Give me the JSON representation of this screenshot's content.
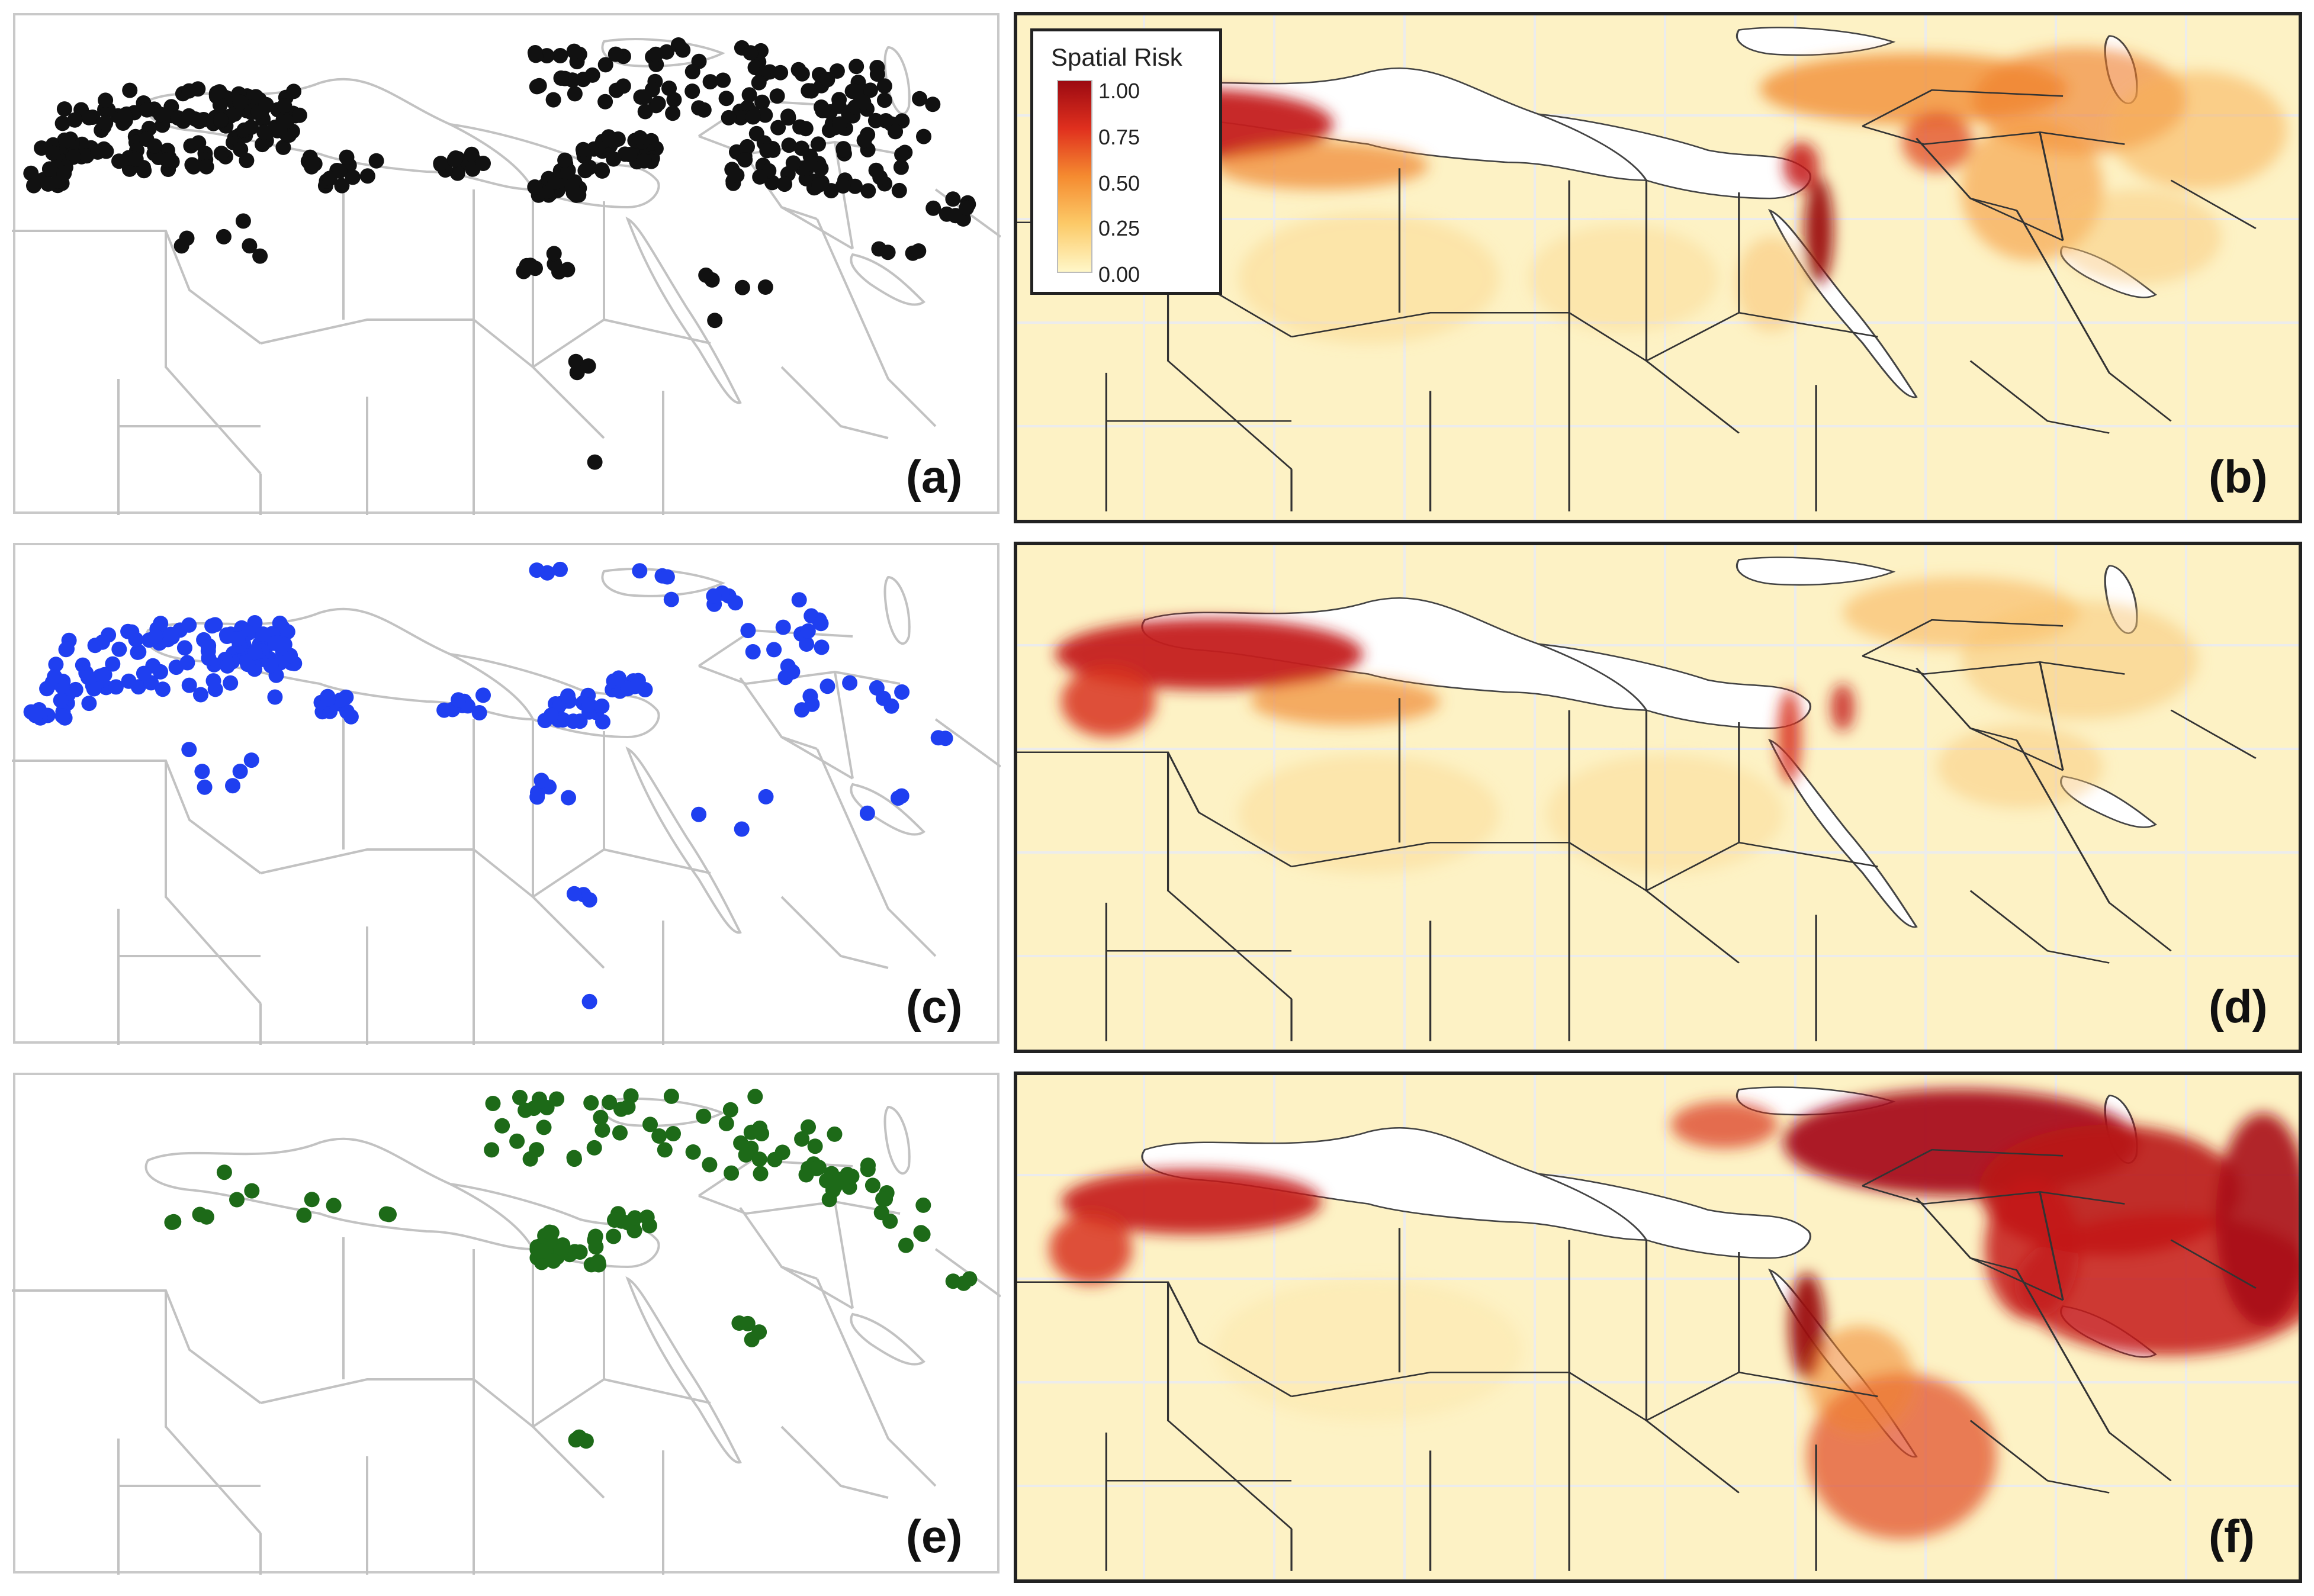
{
  "figure": {
    "panels": [
      {
        "id": "a",
        "label": "(a)",
        "kind": "points",
        "color": "#111111"
      },
      {
        "id": "b",
        "label": "(b)",
        "kind": "risk"
      },
      {
        "id": "c",
        "label": "(c)",
        "kind": "points",
        "color": "#1f3ff0"
      },
      {
        "id": "d",
        "label": "(d)",
        "kind": "risk"
      },
      {
        "id": "e",
        "label": "(e)",
        "kind": "points",
        "color": "#1d6a18"
      },
      {
        "id": "f",
        "label": "(f)",
        "kind": "risk"
      }
    ],
    "legend": {
      "title": "Spatial Risk",
      "ticks": [
        "1.00",
        "0.75",
        "0.50",
        "0.25",
        "0.00"
      ],
      "colors": [
        "#9c0a12",
        "#e0301e",
        "#f58b30",
        "#fcca68",
        "#fff7c8"
      ]
    }
  }
}
